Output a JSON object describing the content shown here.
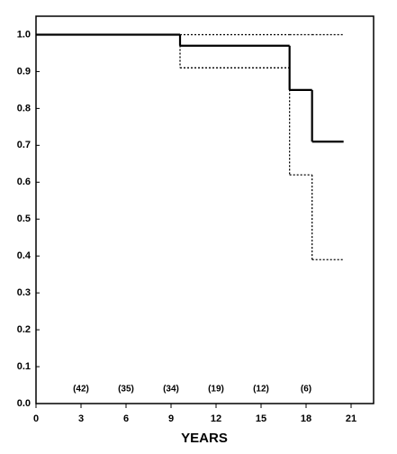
{
  "chart_data": {
    "type": "step",
    "x_label": "YEARS",
    "x": [
      0,
      9.6,
      16.9,
      18.4,
      20.5
    ],
    "series": [
      {
        "color": "#000000",
        "style": "solid",
        "values": [
          1.0,
          0.97,
          0.85,
          0.71,
          0.71
        ]
      },
      {
        "color": "#000000",
        "style": "dotted",
        "values": [
          1.0,
          1.0,
          1.0,
          1.0,
          1.0
        ]
      },
      {
        "color": "#000000",
        "style": "dotted",
        "values": [
          1.0,
          0.91,
          0.62,
          0.39,
          0.39
        ]
      }
    ],
    "at_risk": {
      "x": [
        3,
        6,
        9,
        12,
        15,
        18
      ],
      "values": [
        42,
        35,
        34,
        19,
        12,
        6
      ],
      "value_labels": [
        "(42)",
        "(35)",
        "(34)",
        "(19)",
        "(12)",
        "(6)"
      ]
    },
    "xlim": [
      0,
      22.5
    ],
    "xticks": [
      0,
      3,
      6,
      9,
      12,
      15,
      18,
      21
    ],
    "ylim": [
      0,
      1.05
    ],
    "yticks": [
      {
        "value": 0,
        "label": "0.0"
      },
      0.1,
      0.2,
      0.3,
      0.4,
      0.5,
      0.6,
      0.7,
      0.8,
      0.9,
      {
        "value": 1,
        "label": "1.0"
      }
    ],
    "grid": false
  }
}
